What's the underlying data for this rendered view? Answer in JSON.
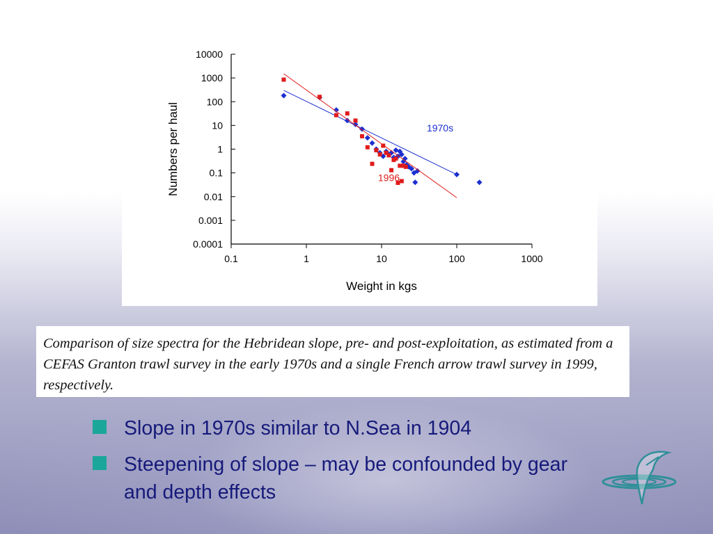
{
  "caption": "Comparison of size spectra for the Hebridean slope, pre- and post-exploitation, as estimated from a CEFAS Granton trawl survey in the early 1970s and a single French arrow trawl survey in 1999, respectively.",
  "bullets": [
    {
      "text": "Slope in 1970s similar to N.Sea in 1904"
    },
    {
      "text": "Steepening of slope – may be confounded by gear and depth effects"
    }
  ],
  "logo": {
    "icon": "fish-logo-icon"
  },
  "colors": {
    "series_1970s": "#1c2fd0",
    "series_1996": "#e01b1b",
    "bullet": "#1aa79a",
    "bullet_text": "#161a7a"
  },
  "chart_data": {
    "type": "scatter",
    "xscale": "log",
    "yscale": "log",
    "xlim": [
      0.1,
      1000
    ],
    "ylim": [
      0.0001,
      10000
    ],
    "xticks": [
      "0.1",
      "1",
      "10",
      "100",
      "1000"
    ],
    "yticks": [
      "10000",
      "1000",
      "100",
      "10",
      "1",
      "0.1",
      "0.01",
      "0.001",
      "0.0001"
    ],
    "xlabel": "Weight in kgs",
    "ylabel": "Numbers per haul",
    "grid": false,
    "series": [
      {
        "name": "1970s",
        "color": "#1c2fd0",
        "marker": "diamond",
        "trend": {
          "x": [
            0.5,
            100
          ],
          "y": [
            300,
            0.085
          ]
        },
        "points": [
          [
            0.5,
            180
          ],
          [
            1.5,
            150
          ],
          [
            2.5,
            45
          ],
          [
            3.5,
            16
          ],
          [
            4.5,
            11
          ],
          [
            5.5,
            7
          ],
          [
            6.5,
            3
          ],
          [
            7.5,
            1.8
          ],
          [
            8.5,
            1
          ],
          [
            9.5,
            0.7
          ],
          [
            10.5,
            0.5
          ],
          [
            11.5,
            0.8
          ],
          [
            12.5,
            0.6
          ],
          [
            13.5,
            0.7
          ],
          [
            14.5,
            0.45
          ],
          [
            15.5,
            0.9
          ],
          [
            16.5,
            0.5
          ],
          [
            17.5,
            0.8
          ],
          [
            18.5,
            0.6
          ],
          [
            19.5,
            0.3
          ],
          [
            20.5,
            0.4
          ],
          [
            21.5,
            0.22
          ],
          [
            23,
            0.18
          ],
          [
            25,
            0.15
          ],
          [
            27,
            0.1
          ],
          [
            28,
            0.04
          ],
          [
            30,
            0.12
          ],
          [
            100,
            0.085
          ],
          [
            200,
            0.04
          ]
        ]
      },
      {
        "name": "1996",
        "color": "#e01b1b",
        "marker": "square",
        "trend": {
          "x": [
            0.5,
            100
          ],
          "y": [
            1500,
            0.009
          ]
        },
        "points": [
          [
            0.5,
            850
          ],
          [
            1.5,
            160
          ],
          [
            2.5,
            27
          ],
          [
            3.5,
            32
          ],
          [
            4.5,
            16
          ],
          [
            5.5,
            3.5
          ],
          [
            6.5,
            1.2
          ],
          [
            7.5,
            0.24
          ],
          [
            8.5,
            0.9
          ],
          [
            9.5,
            0.6
          ],
          [
            10.5,
            1.4
          ],
          [
            11.5,
            0.7
          ],
          [
            12.5,
            0.55
          ],
          [
            13.5,
            0.13
          ],
          [
            14.5,
            0.35
          ],
          [
            15.5,
            0.4
          ],
          [
            16.5,
            0.038
          ],
          [
            17.5,
            0.2
          ],
          [
            18.5,
            0.045
          ],
          [
            19.5,
            0.2
          ],
          [
            21,
            0.18
          ]
        ]
      }
    ],
    "annotations": [
      {
        "text": "1970s",
        "color": "#1c2fd0",
        "x": 60,
        "y": 5.5
      },
      {
        "text": "1996",
        "color": "#e01b1b",
        "x": 12.5,
        "y": 0.045
      }
    ]
  }
}
